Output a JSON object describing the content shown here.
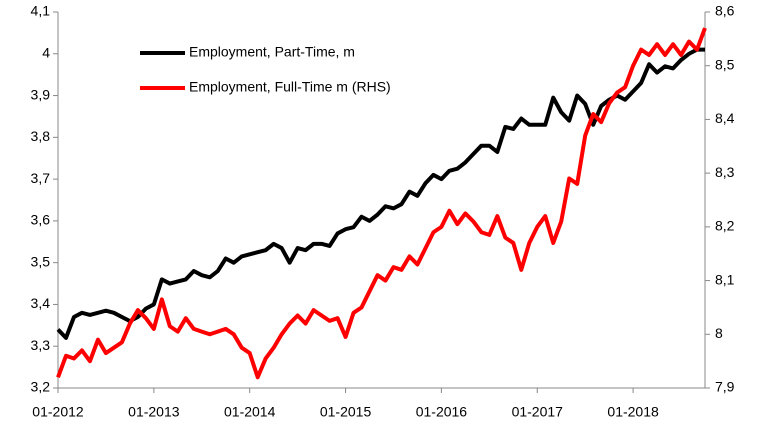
{
  "chart_data": {
    "type": "line",
    "categories": [
      "01-2012",
      null,
      null,
      null,
      null,
      null,
      null,
      null,
      null,
      null,
      null,
      null,
      "01-2013",
      null,
      null,
      null,
      null,
      null,
      null,
      null,
      null,
      null,
      null,
      null,
      "01-2014",
      null,
      null,
      null,
      null,
      null,
      null,
      null,
      null,
      null,
      null,
      null,
      "01-2015",
      null,
      null,
      null,
      null,
      null,
      null,
      null,
      null,
      null,
      null,
      null,
      "01-2016",
      null,
      null,
      null,
      null,
      null,
      null,
      null,
      null,
      null,
      null,
      null,
      "01-2017",
      null,
      null,
      null,
      null,
      null,
      null,
      null,
      null,
      null,
      null,
      null,
      "01-2018",
      null,
      null,
      null,
      null,
      null,
      null,
      null,
      null,
      null
    ],
    "series": [
      {
        "name": "Employment, Part-Time, m",
        "color": "#000000",
        "axis": "y",
        "values": [
          3.34,
          3.32,
          3.37,
          3.38,
          3.375,
          3.38,
          3.385,
          3.38,
          3.37,
          3.36,
          3.37,
          3.39,
          3.4,
          3.46,
          3.45,
          3.455,
          3.46,
          3.48,
          3.47,
          3.465,
          3.48,
          3.51,
          3.5,
          3.515,
          3.52,
          3.525,
          3.53,
          3.545,
          3.535,
          3.5,
          3.535,
          3.53,
          3.545,
          3.545,
          3.54,
          3.57,
          3.58,
          3.585,
          3.61,
          3.6,
          3.615,
          3.635,
          3.63,
          3.64,
          3.67,
          3.66,
          3.69,
          3.71,
          3.7,
          3.72,
          3.725,
          3.74,
          3.76,
          3.78,
          3.78,
          3.765,
          3.825,
          3.82,
          3.845,
          3.83,
          3.83,
          3.83,
          3.895,
          3.86,
          3.84,
          3.9,
          3.88,
          3.83,
          3.875,
          3.89,
          3.9,
          3.89,
          3.91,
          3.93,
          3.975,
          3.955,
          3.97,
          3.965,
          3.985,
          4.0,
          4.01,
          4.01
        ]
      },
      {
        "name": "Employment, Full-Time m (RHS)",
        "color": "#ff0000",
        "axis": "y2",
        "values": [
          7.92,
          7.96,
          7.955,
          7.97,
          7.95,
          7.99,
          7.965,
          7.975,
          7.985,
          8.02,
          8.045,
          8.03,
          8.01,
          8.065,
          8.015,
          8.005,
          8.03,
          8.01,
          8.005,
          8.0,
          8.005,
          8.01,
          8.0,
          7.975,
          7.965,
          7.92,
          7.955,
          7.975,
          8.0,
          8.02,
          8.035,
          8.02,
          8.045,
          8.035,
          8.025,
          8.03,
          7.995,
          8.04,
          8.05,
          8.08,
          8.11,
          8.1,
          8.125,
          8.12,
          8.145,
          8.13,
          8.16,
          8.19,
          8.2,
          8.23,
          8.205,
          8.225,
          8.21,
          8.19,
          8.185,
          8.22,
          8.18,
          8.17,
          8.12,
          8.17,
          8.2,
          8.22,
          8.17,
          8.21,
          8.29,
          8.28,
          8.37,
          8.41,
          8.395,
          8.43,
          8.45,
          8.46,
          8.5,
          8.53,
          8.52,
          8.54,
          8.52,
          8.54,
          8.52,
          8.545,
          8.53,
          8.57
        ]
      }
    ],
    "ylim": [
      3.2,
      4.1
    ],
    "yticks": [
      {
        "value": 3.2,
        "label": "3,2"
      },
      {
        "value": 3.3,
        "label": "3,3"
      },
      {
        "value": 3.4,
        "label": "3,4"
      },
      {
        "value": 3.5,
        "label": "3,5"
      },
      {
        "value": 3.6,
        "label": "3,6"
      },
      {
        "value": 3.7,
        "label": "3,7"
      },
      {
        "value": 3.8,
        "label": "3,8"
      },
      {
        "value": 3.9,
        "label": "3,9"
      },
      4,
      {
        "value": 4.1,
        "label": "4,1"
      }
    ],
    "y2lim": [
      7.9,
      8.6
    ],
    "y2ticks": [
      {
        "value": 7.9,
        "label": "7,9"
      },
      8,
      {
        "value": 8.1,
        "label": "8,1"
      },
      {
        "value": 8.2,
        "label": "8,2"
      },
      {
        "value": 8.3,
        "label": "8,3"
      },
      {
        "value": 8.4,
        "label": "8,4"
      },
      {
        "value": 8.5,
        "label": "8,5"
      },
      {
        "value": 8.6,
        "label": "8,6"
      }
    ],
    "grid": false
  }
}
